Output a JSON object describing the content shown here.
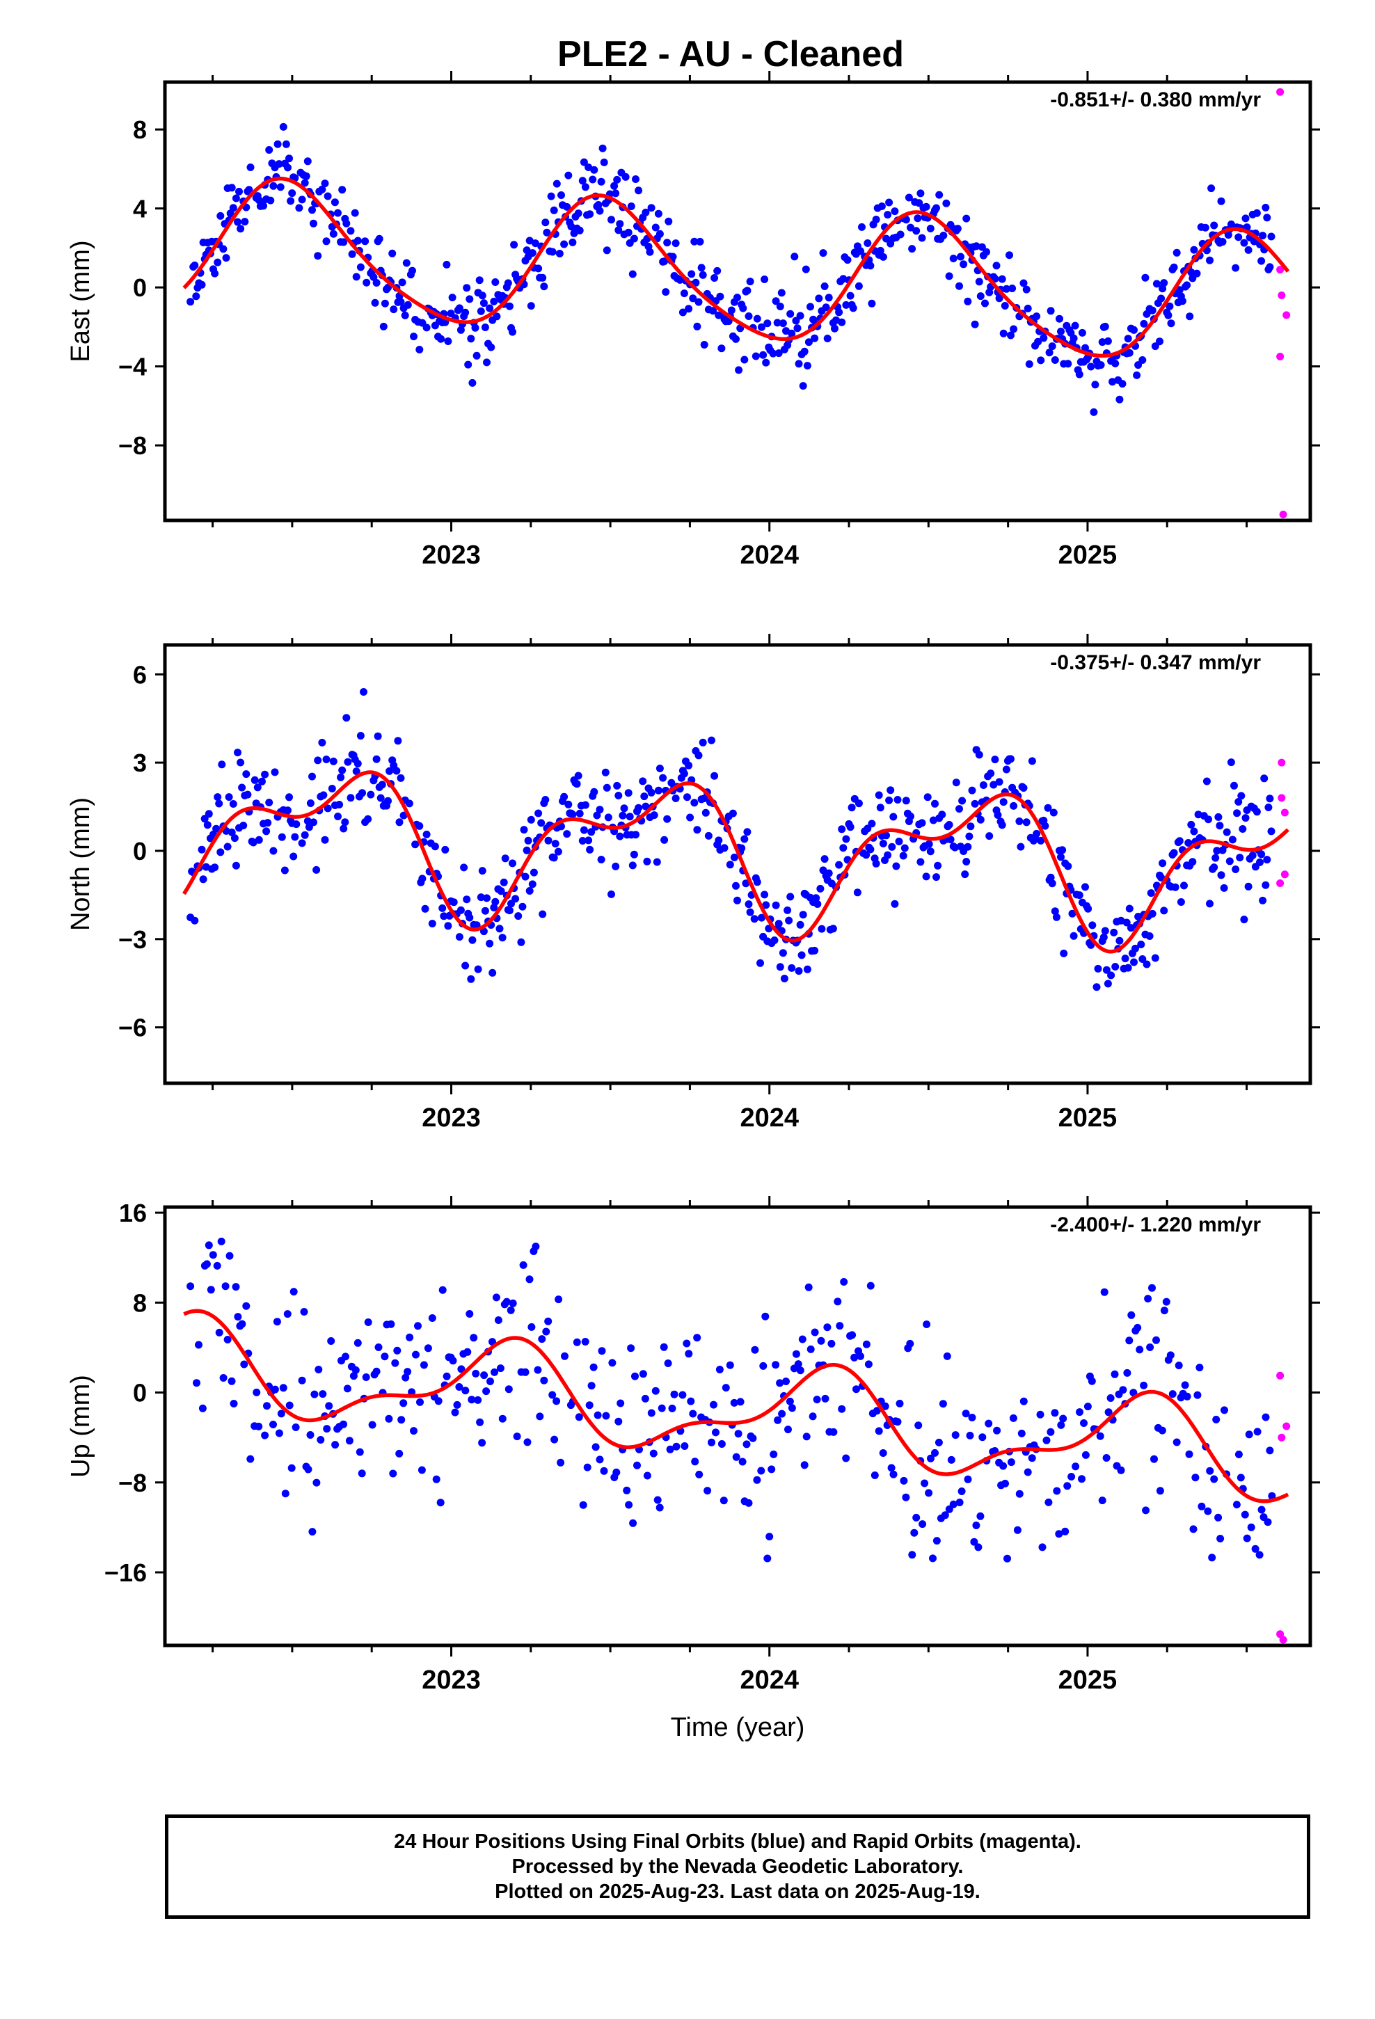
{
  "title": "PLE2  - AU - Cleaned",
  "colors": {
    "final": "#0000ff",
    "rapid": "#ff00ff",
    "fit": "#ff0000",
    "axis": "#000000"
  },
  "footer": {
    "lines": [
      "24 Hour Positions Using Final Orbits (blue) and Rapid Orbits (magenta).",
      "Processed by the Nevada Geodetic Laboratory.",
      "Plotted on 2025-Aug-23. Last data on 2025-Aug-19."
    ]
  },
  "chart_data": [
    {
      "type": "scatter",
      "ylabel": "East (mm)",
      "xlabel": "",
      "rate_text": "-0.851+/- 0.380 mm/yr",
      "xlim": [
        2022.1,
        2025.7
      ],
      "ylim": [
        -11.8,
        10.4
      ],
      "yticks": [
        8,
        4,
        0,
        -4,
        -8
      ],
      "ytick_labels": [
        "8",
        "4",
        "0",
        "−4",
        "−8"
      ],
      "xticks": [
        2023,
        2024,
        2025
      ],
      "xtick_labels": [
        "2023",
        "2024",
        "2025"
      ],
      "xminor_step": 0.25,
      "model": {
        "name": "",
        "offset": 0.5,
        "trend": -0.851,
        "annual_a": 0.2,
        "annual_b": -3.3,
        "semi_a": -0.4,
        "semi_b": 0.3,
        "ref": 2024.0
      },
      "final_series": {
        "name": "Final Orbits (blue)",
        "noise": 1.1,
        "start": 2022.18,
        "end": 2025.58,
        "step": 0.0045,
        "seed": 11
      },
      "rapid_series": {
        "name": "Rapid Orbits (magenta)",
        "points": [
          [
            2025.605,
            9.9
          ],
          [
            2025.605,
            0.9
          ],
          [
            2025.61,
            -0.4
          ],
          [
            2025.605,
            -3.5
          ],
          [
            2025.625,
            -1.4
          ],
          [
            2025.615,
            -11.5
          ]
        ]
      }
    },
    {
      "type": "scatter",
      "ylabel": "North (mm)",
      "xlabel": "",
      "rate_text": "-0.375+/- 0.347 mm/yr",
      "xlim": [
        2022.1,
        2025.7
      ],
      "ylim": [
        -7.9,
        7.0
      ],
      "yticks": [
        6,
        3,
        0,
        -3,
        -6
      ],
      "ytick_labels": [
        "6",
        "3",
        "0",
        "−3",
        "−6"
      ],
      "xticks": [
        2023,
        2024,
        2025
      ],
      "xtick_labels": [
        "2023",
        "2024",
        "2025"
      ],
      "xminor_step": 0.25,
      "model": {
        "name": "",
        "offset": 0.0,
        "trend": -0.375,
        "annual_a": -1.3,
        "annual_b": -1.5,
        "semi_a": -0.7,
        "semi_b": -0.9,
        "ref": 2024.0
      },
      "final_series": {
        "name": "Final Orbits (blue)",
        "noise": 0.9,
        "start": 2022.18,
        "end": 2025.58,
        "step": 0.0045,
        "seed": 23
      },
      "rapid_series": {
        "name": "Rapid Orbits (magenta)",
        "points": [
          [
            2025.61,
            3.0
          ],
          [
            2025.61,
            1.8
          ],
          [
            2025.62,
            1.3
          ],
          [
            2025.605,
            -1.1
          ],
          [
            2025.62,
            -0.8
          ]
        ]
      }
    },
    {
      "type": "scatter",
      "ylabel": "Up (mm)",
      "xlabel": "Time (year)",
      "rate_text": "-2.400+/- 1.220 mm/yr",
      "xlim": [
        2022.1,
        2025.7
      ],
      "ylim": [
        -22.5,
        16.5
      ],
      "yticks": [
        16,
        8,
        0,
        -8,
        -16
      ],
      "ytick_labels": [
        "16",
        "8",
        "0",
        "−8",
        "−16"
      ],
      "xticks": [
        2023,
        2024,
        2025
      ],
      "xtick_labels": [
        "2023",
        "2024",
        "2025"
      ],
      "xminor_step": 0.25,
      "model": {
        "name": "",
        "offset": -2.0,
        "trend": -2.4,
        "annual_a": 3.0,
        "annual_b": 2.0,
        "semi_a": 0.3,
        "semi_b": -1.6,
        "ref": 2024.0
      },
      "final_series": {
        "name": "Final Orbits (blue)",
        "noise": 4.2,
        "start": 2022.18,
        "end": 2025.58,
        "step": 0.0065,
        "seed": 37
      },
      "rapid_series": {
        "name": "Rapid Orbits (magenta)",
        "points": [
          [
            2025.605,
            1.5
          ],
          [
            2025.61,
            -4.0
          ],
          [
            2025.625,
            -3.0
          ],
          [
            2025.605,
            -21.5
          ],
          [
            2025.615,
            -22.0
          ]
        ]
      }
    }
  ]
}
